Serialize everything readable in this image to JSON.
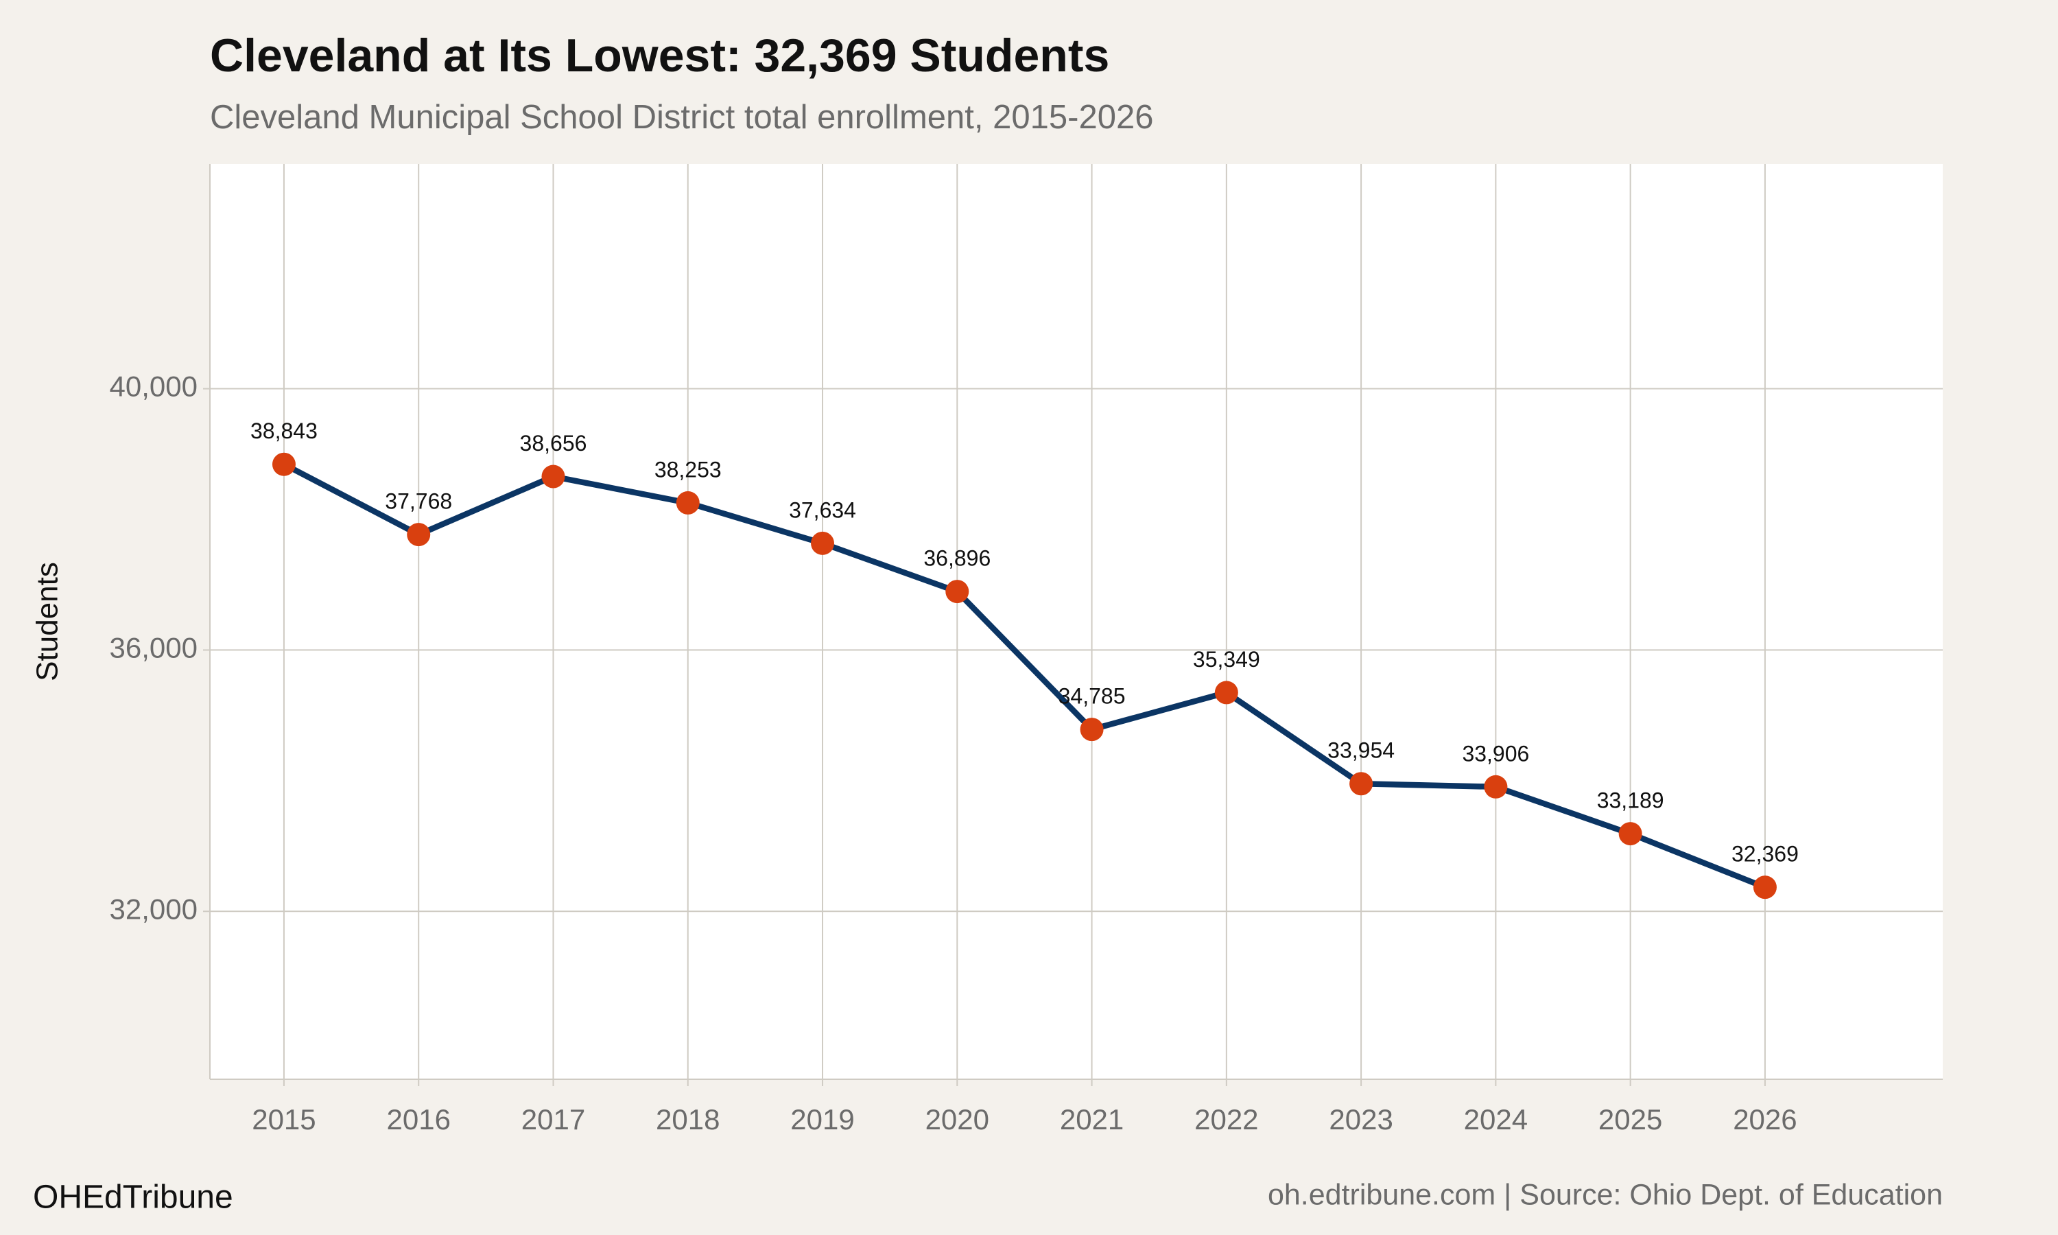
{
  "chart_data": {
    "type": "line",
    "title": "Cleveland at Its Lowest: 32,369 Students",
    "subtitle": "Cleveland Municipal School District total enrollment, 2015-2026",
    "y_label": "Students",
    "x": [
      2015,
      2016,
      2017,
      2018,
      2019,
      2020,
      2021,
      2022,
      2023,
      2024,
      2025,
      2026
    ],
    "values": [
      38843,
      37768,
      38656,
      38253,
      37634,
      36896,
      34785,
      35349,
      33954,
      33906,
      33189,
      32369
    ],
    "value_labels": [
      "38,843",
      "37,768",
      "38,656",
      "38,253",
      "37,634",
      "36,896",
      "34,785",
      "35,349",
      "33,954",
      "33,906",
      "33,189",
      "32,369"
    ],
    "color": "#0b3564",
    "marker_color": "#d9400f",
    "xlim": [
      2014.45,
      2027.32
    ],
    "xticks": [
      2015,
      2016,
      2017,
      2018,
      2019,
      2020,
      2021,
      2022,
      2023,
      2024,
      2025,
      2026
    ],
    "ylim": [
      29430,
      43440
    ],
    "yticks": [
      {
        "value": 32000,
        "label": "32,000"
      },
      {
        "value": 36000,
        "label": "36,000"
      },
      {
        "value": 40000,
        "label": "40,000"
      }
    ],
    "grid": true,
    "footer_left": "OHEdTribune",
    "footer_right": "oh.edtribune.com | Source: Ohio Dept. of Education"
  }
}
